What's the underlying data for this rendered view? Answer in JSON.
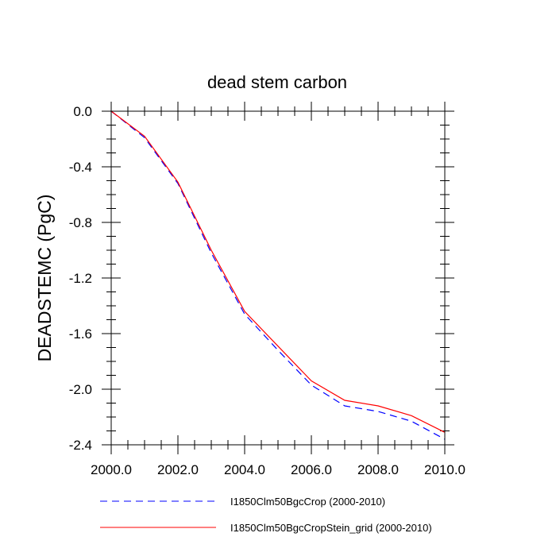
{
  "chart_data": {
    "type": "line",
    "title": "dead stem carbon",
    "xlabel": "",
    "ylabel": "DEADSTEMC  (PgC)",
    "xlim": [
      2000,
      2010
    ],
    "ylim": [
      -2.4,
      0.0
    ],
    "x_ticks": [
      2000,
      2002,
      2004,
      2006,
      2008,
      2010
    ],
    "x_tick_labels": [
      "2000.0",
      "2002.0",
      "2004.0",
      "2006.0",
      "2008.0",
      "2010.0"
    ],
    "y_ticks": [
      0.0,
      -0.4,
      -0.8,
      -1.2,
      -1.6,
      -2.0,
      -2.4
    ],
    "y_tick_labels": [
      "0.0",
      "-0.4",
      "-0.8",
      "-1.2",
      "-1.6",
      "-2.0",
      "-2.4"
    ],
    "grid": false,
    "legend_position": "bottom",
    "x": [
      2000,
      2001,
      2002,
      2003,
      2004,
      2005,
      2006,
      2007,
      2008,
      2009,
      2010
    ],
    "series": [
      {
        "name": "I1850Clm50BgcCrop (2000-2010)",
        "color": "#0000ff",
        "dash": "dashed",
        "values": [
          0.0,
          -0.19,
          -0.52,
          -1.02,
          -1.46,
          -1.72,
          -1.97,
          -2.12,
          -2.16,
          -2.23,
          -2.36
        ]
      },
      {
        "name": "I1850Clm50BgcCropStein_grid (2000-2010)",
        "color": "#ff0000",
        "dash": "solid",
        "values": [
          0.0,
          -0.18,
          -0.51,
          -1.0,
          -1.44,
          -1.69,
          -1.94,
          -2.08,
          -2.12,
          -2.19,
          -2.31
        ]
      }
    ]
  }
}
